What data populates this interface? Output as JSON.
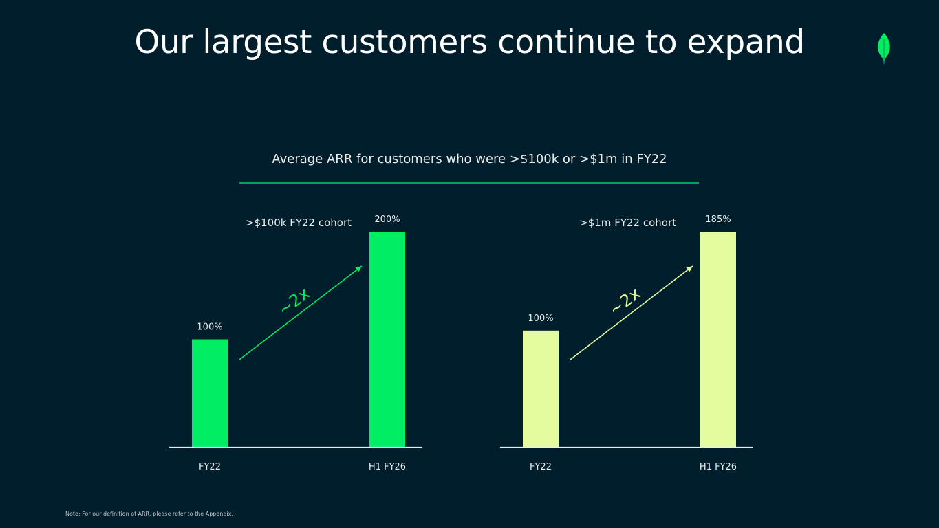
{
  "slide": {
    "title": "Our largest customers continue to expand",
    "subtitle": "Average ARR for customers who were  >$100k or >$1m in FY22",
    "footnote": "Note: For our definition of ARR, please refer to the Appendix."
  },
  "logo": {
    "icon": "leaf-icon",
    "color": "#00ed64"
  },
  "chart_data": [
    {
      "type": "bar",
      "title": ">$100k FY22 cohort",
      "categories": [
        "FY22",
        "H1 FY26"
      ],
      "values": [
        100,
        200
      ],
      "value_labels": [
        "100%",
        "200%"
      ],
      "annotation": "~2x",
      "color": "#00ed64",
      "ylim": [
        0,
        200
      ]
    },
    {
      "type": "bar",
      "title": ">$1m FY22 cohort",
      "categories": [
        "FY22",
        "H1 FY26"
      ],
      "values": [
        100,
        185
      ],
      "value_labels": [
        "100%",
        "185%"
      ],
      "annotation": "~2x",
      "color": "#e3fc9e",
      "ylim": [
        0,
        185
      ]
    }
  ]
}
